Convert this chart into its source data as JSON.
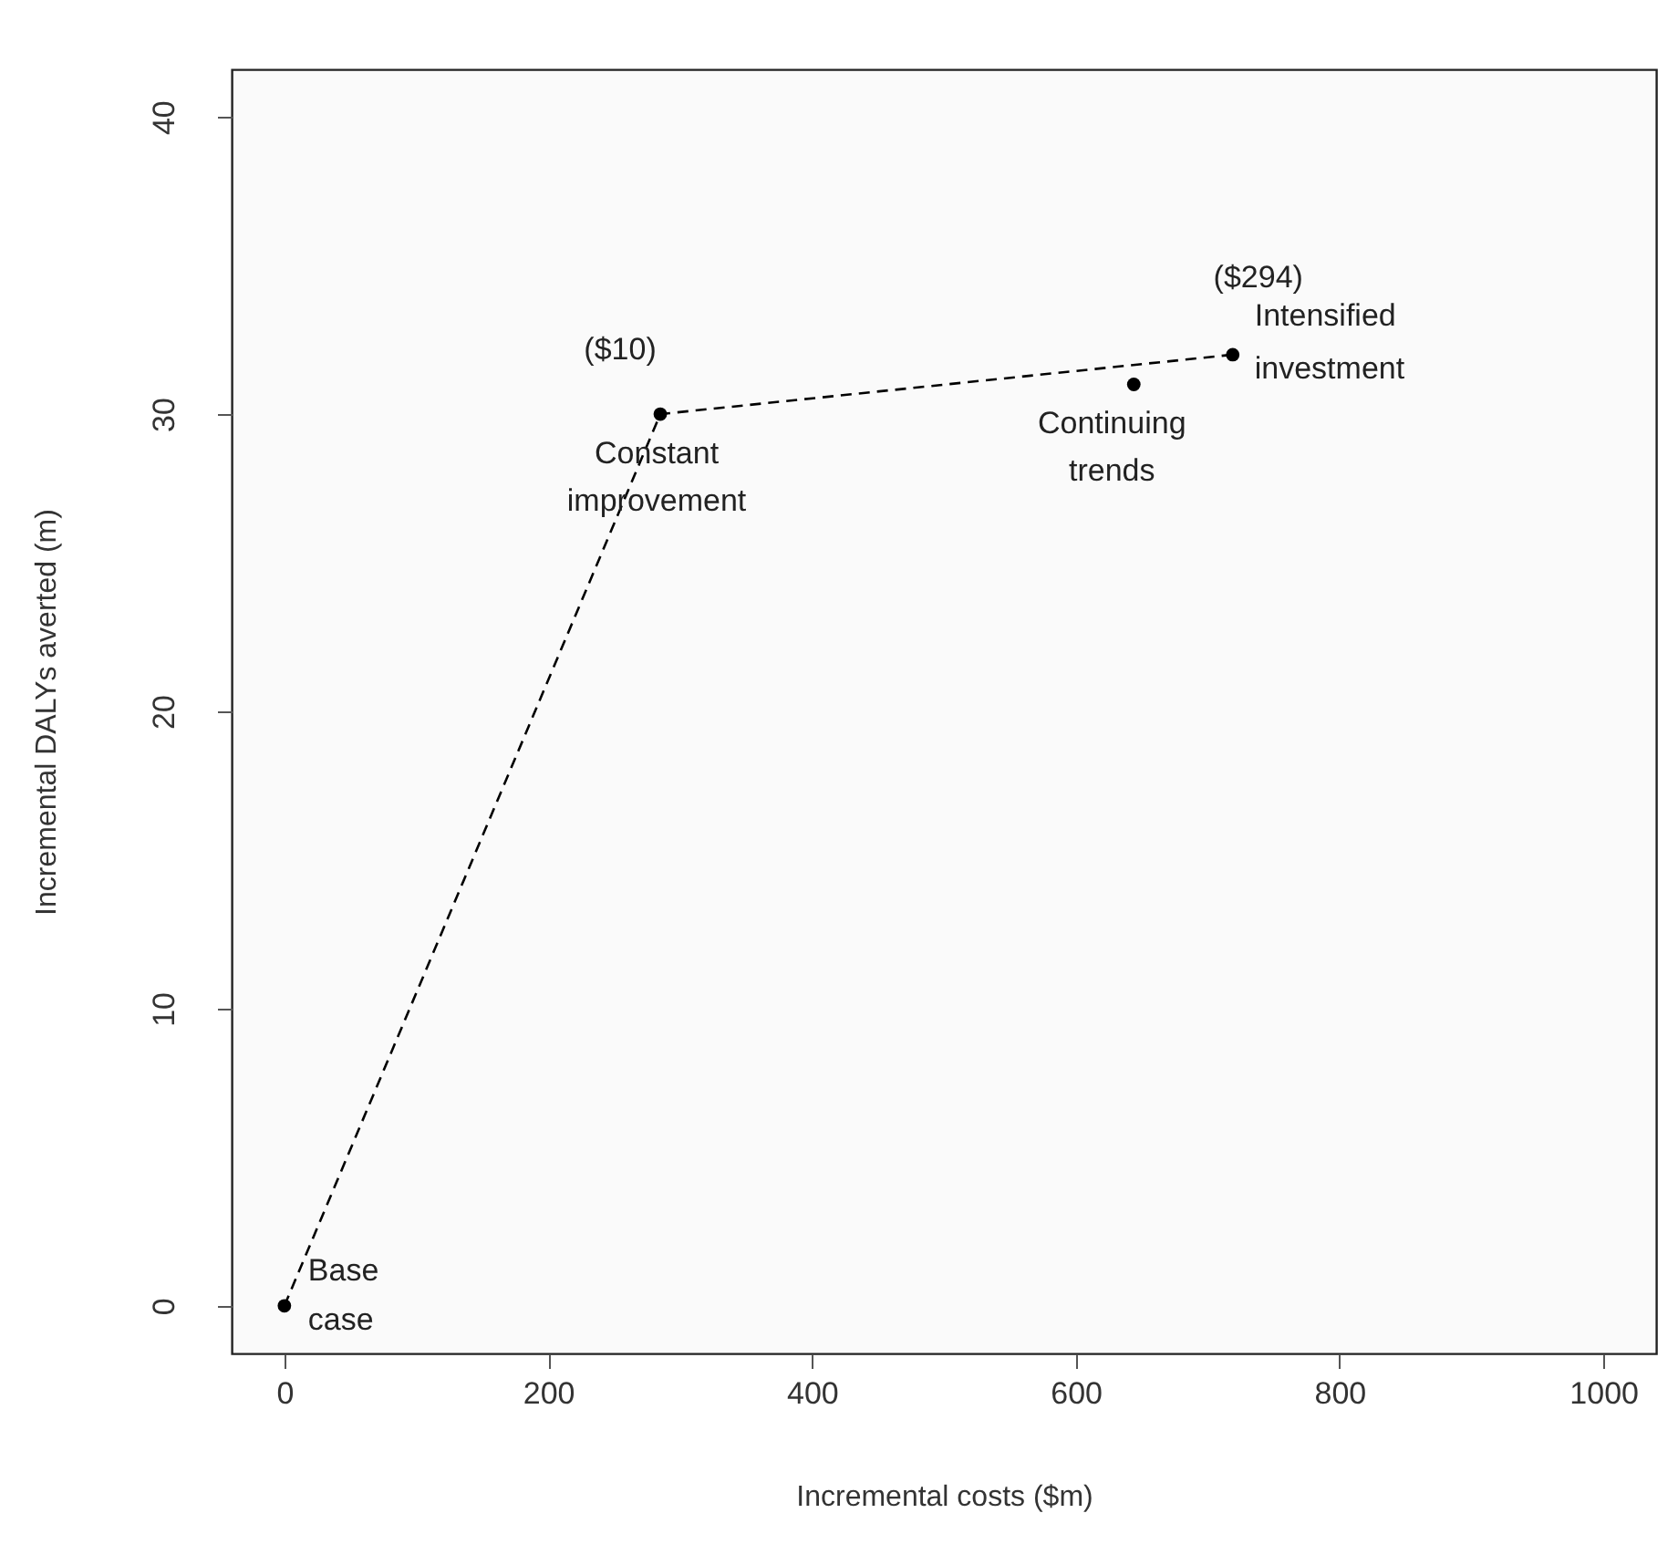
{
  "chart_data": {
    "type": "scatter",
    "xlabel": "Incremental costs ($m)",
    "ylabel": "Incremental DALYs averted (m)",
    "xlim": [
      -40,
      1040
    ],
    "ylim": [
      -1.6,
      41.6
    ],
    "xticks": [
      0,
      200,
      400,
      600,
      800,
      1000
    ],
    "yticks": [
      0,
      10,
      20,
      30,
      40
    ],
    "grid": false,
    "marker": "circle",
    "series": [
      {
        "color": "#000000",
        "x": [
          0,
          285,
          644,
          719
        ],
        "values": [
          0,
          30,
          31,
          32
        ]
      },
      {
        "type": "line",
        "color": "#000000",
        "line_style": "dashed",
        "marker": "none",
        "x": [
          0,
          285,
          719
        ],
        "values": [
          0,
          30,
          32
        ]
      }
    ],
    "annotations": [
      {
        "text": "Base case",
        "x": 0,
        "y": 0
      },
      {
        "text": "Constant improvement",
        "x": 285,
        "y": 30
      },
      {
        "text": "Continuing trends",
        "x": 644,
        "y": 31
      },
      {
        "text": "Intensified investment",
        "x": 719,
        "y": 32
      },
      {
        "text": "($10)",
        "x": 285,
        "y": 30
      },
      {
        "text": "($294)",
        "x": 719,
        "y": 32
      }
    ]
  }
}
